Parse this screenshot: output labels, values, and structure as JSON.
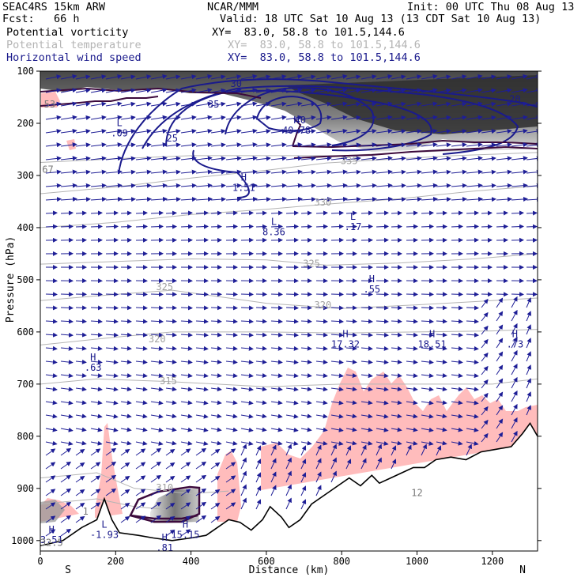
{
  "header": {
    "model": "SEAC4RS 15km ARW",
    "forecast": "Fcst:   66 h",
    "org": "NCAR/MMM",
    "init": "Init: 00 UTC Thu 08 Aug 13",
    "valid": "Valid: 18 UTC Sat 10 Aug 13 (13 CDT Sat 10 Aug 13)"
  },
  "fields": [
    {
      "name": "Potential vorticity",
      "xy": "XY=  83.0, 58.8 to 101.5,144.6",
      "color": "#000000"
    },
    {
      "name": "Potential temperature",
      "xy": "XY=  83.0, 58.8 to 101.5,144.6",
      "color": "#b4b4b4"
    },
    {
      "name": "Horizontal wind speed",
      "xy": "XY=  83.0, 58.8 to 101.5,144.6",
      "color": "#1a1a8c"
    }
  ],
  "chart_data": {
    "type": "cross-section",
    "xlabel": "Distance (km)",
    "ylabel": "Pressure (hPa)",
    "xlim": [
      0,
      1320
    ],
    "ylim": [
      1020,
      100
    ],
    "x_ticks": [
      0,
      200,
      400,
      600,
      800,
      1000,
      1200
    ],
    "y_ticks": [
      100,
      200,
      300,
      400,
      500,
      600,
      700,
      800,
      900,
      1000
    ],
    "x_tick_labels": [
      "0",
      "200",
      "400",
      "600",
      "800",
      "1000",
      "1200"
    ],
    "y_tick_labels": [
      "100",
      "200",
      "300",
      "400",
      "500",
      "600",
      "700",
      "800",
      "900",
      "1000"
    ],
    "end_labels": {
      "left": "S",
      "right": "N"
    },
    "wind_speed_contours": [
      {
        "label": "20",
        "x": 1260,
        "p": 160
      },
      {
        "label": "25",
        "x": 350,
        "p": 235
      },
      {
        "label": "30",
        "x": 520,
        "p": 130
      },
      {
        "label": "35",
        "x": 460,
        "p": 170
      },
      {
        "label": "40",
        "x": 690,
        "p": 200
      }
    ],
    "theta_labels": [
      {
        "label": "335",
        "x": 820,
        "p": 278
      },
      {
        "label": "330",
        "x": 750,
        "p": 358
      },
      {
        "label": "325",
        "x": 720,
        "p": 475
      },
      {
        "label": "325",
        "x": 330,
        "p": 520
      },
      {
        "label": "320",
        "x": 750,
        "p": 555
      },
      {
        "label": "320",
        "x": 310,
        "p": 620
      },
      {
        "label": "315",
        "x": 340,
        "p": 700
      },
      {
        "label": "310",
        "x": 330,
        "p": 905
      }
    ],
    "extrema": [
      {
        "type": "H",
        "value": ".63",
        "x": 140,
        "p": 655
      },
      {
        "type": "H",
        "value": "17.32",
        "x": 810,
        "p": 610
      },
      {
        "type": "H",
        "value": "18.51",
        "x": 1040,
        "p": 610
      },
      {
        "type": "H",
        "value": ".73",
        "x": 1260,
        "p": 610
      },
      {
        "type": "L",
        "value": "8.36",
        "x": 620,
        "p": 395
      },
      {
        "type": "L",
        "value": ".17",
        "x": 830,
        "p": 385
      },
      {
        "type": "H",
        "value": ".55",
        "x": 880,
        "p": 505
      },
      {
        "type": "H",
        "value": "1.51",
        "x": 540,
        "p": 310
      },
      {
        "type": "H",
        "value": "40.78",
        "x": 680,
        "p": 200
      },
      {
        "type": "L",
        "value": ".09",
        "x": 210,
        "p": 205
      },
      {
        "type": "L",
        "value": "-1.93",
        "x": 170,
        "p": 975
      },
      {
        "type": "H",
        "value": "3.51",
        "x": 30,
        "p": 985
      },
      {
        "type": "H",
        "value": "15.15",
        "x": 385,
        "p": 975
      },
      {
        "type": "H",
        "value": ".81",
        "x": 330,
        "p": 1000
      }
    ],
    "corner_labels": [
      {
        "label": "53",
        "x": 25,
        "p": 170
      },
      {
        "label": "67",
        "x": 20,
        "p": 295
      },
      {
        "label": "32.5",
        "x": 30,
        "p": 1010
      },
      {
        "label": "12",
        "x": 1000,
        "p": 915
      },
      {
        "label": "1",
        "x": 120,
        "p": 950
      }
    ],
    "terrain": [
      [
        0,
        1010
      ],
      [
        60,
        1000
      ],
      [
        110,
        975
      ],
      [
        150,
        960
      ],
      [
        170,
        920
      ],
      [
        190,
        960
      ],
      [
        210,
        985
      ],
      [
        260,
        990
      ],
      [
        300,
        995
      ],
      [
        350,
        1000
      ],
      [
        400,
        995
      ],
      [
        440,
        990
      ],
      [
        470,
        975
      ],
      [
        500,
        960
      ],
      [
        530,
        965
      ],
      [
        560,
        980
      ],
      [
        590,
        960
      ],
      [
        610,
        935
      ],
      [
        640,
        955
      ],
      [
        660,
        975
      ],
      [
        690,
        960
      ],
      [
        720,
        930
      ],
      [
        760,
        910
      ],
      [
        790,
        895
      ],
      [
        820,
        880
      ],
      [
        850,
        895
      ],
      [
        880,
        875
      ],
      [
        900,
        890
      ],
      [
        930,
        880
      ],
      [
        960,
        870
      ],
      [
        990,
        860
      ],
      [
        1020,
        860
      ],
      [
        1050,
        845
      ],
      [
        1090,
        840
      ],
      [
        1130,
        845
      ],
      [
        1170,
        830
      ],
      [
        1210,
        825
      ],
      [
        1250,
        820
      ],
      [
        1280,
        795
      ],
      [
        1300,
        775
      ],
      [
        1320,
        800
      ]
    ]
  }
}
